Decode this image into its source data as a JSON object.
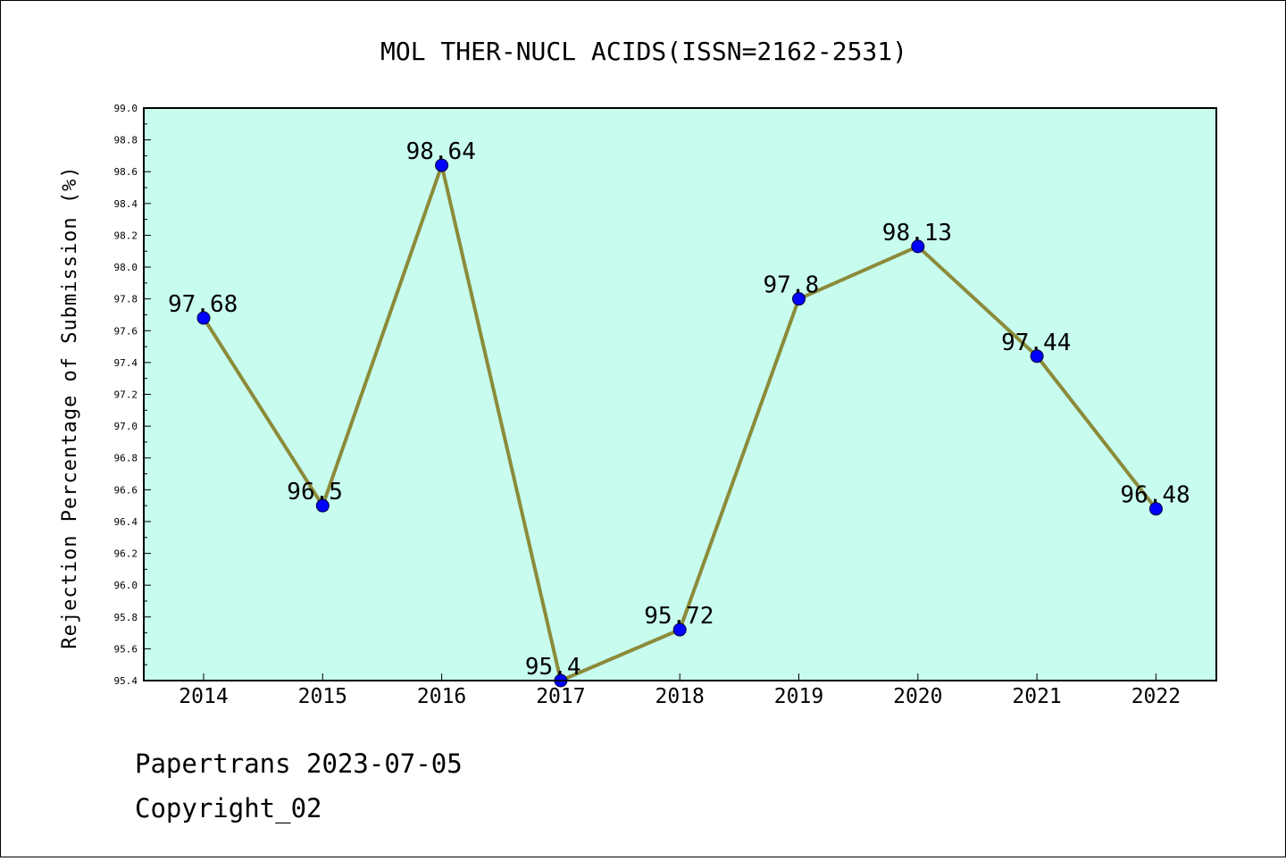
{
  "chart_data": {
    "type": "line",
    "title": "MOL THER-NUCL ACIDS(ISSN=2162-2531)",
    "xlabel": "",
    "ylabel": "Rejection Percentage of Submission (%)",
    "categories": [
      "2014",
      "2015",
      "2016",
      "2017",
      "2018",
      "2019",
      "2020",
      "2021",
      "2022"
    ],
    "values": [
      97.68,
      96.5,
      98.64,
      95.4,
      95.72,
      97.8,
      98.13,
      97.44,
      96.48
    ],
    "data_labels": [
      "97.68",
      "96.5",
      "98.64",
      "95.4",
      "95.72",
      "97.8",
      "98.13",
      "97.44",
      "96.48"
    ],
    "ylim": [
      95.4,
      99.0
    ],
    "yticks": [
      "95.4",
      "95.6",
      "95.8",
      "96.0",
      "96.2",
      "96.4",
      "96.6",
      "96.8",
      "97.0",
      "97.2",
      "97.4",
      "97.6",
      "97.8",
      "98.0",
      "98.2",
      "98.4",
      "98.6",
      "98.8",
      "99.0"
    ],
    "grid": false,
    "legend": "none",
    "colors": {
      "plot_background": "#c8fcee",
      "line": "#8b8b3a",
      "marker": "#0000ff"
    }
  },
  "footer": {
    "line1": "Papertrans 2023-07-05",
    "line2": "Copyright_02"
  }
}
